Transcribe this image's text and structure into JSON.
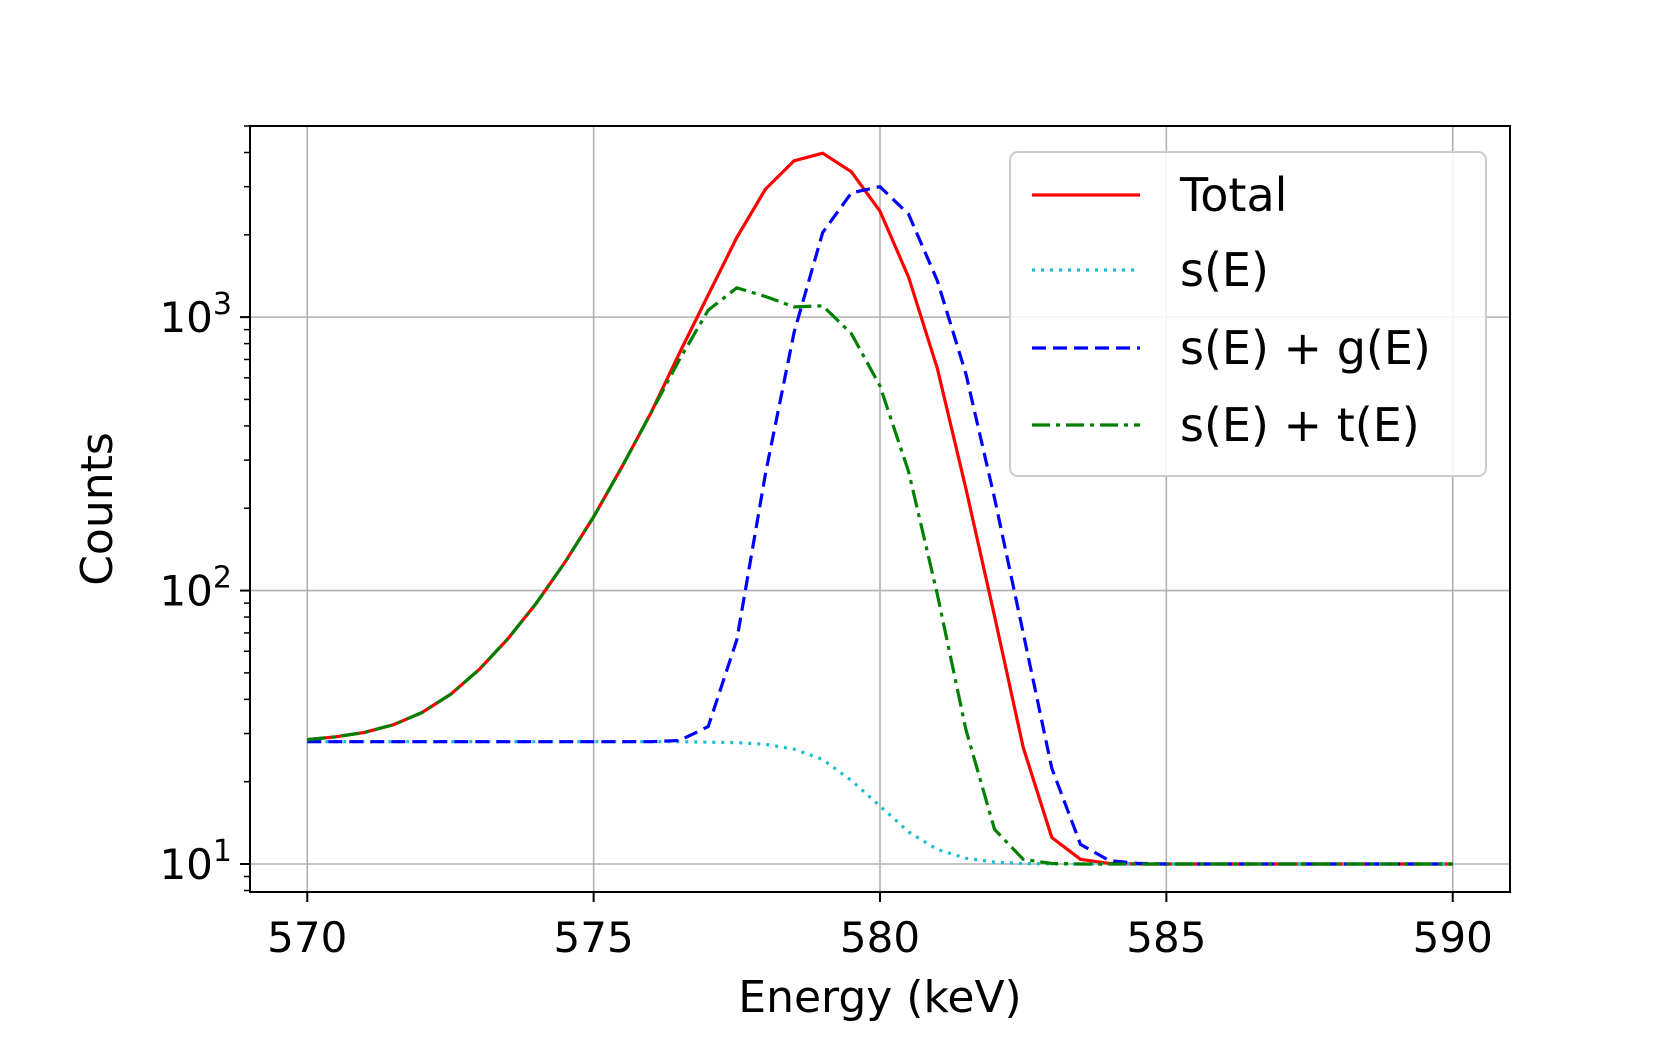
{
  "chart_data": {
    "type": "line",
    "title": "",
    "xlabel": "Energy (keV)",
    "ylabel": "Counts",
    "yscale": "log",
    "xlim": [
      569,
      591
    ],
    "ylim": [
      7.9,
      5000
    ],
    "grid": true,
    "legend_position": "top-right",
    "xticks": [
      {
        "value": 570,
        "label": "570"
      },
      {
        "value": 575,
        "label": "575"
      },
      {
        "value": 580,
        "label": "580"
      },
      {
        "value": 585,
        "label": "585"
      },
      {
        "value": 590,
        "label": "590"
      }
    ],
    "yticks": [
      {
        "value": 10,
        "base": "10",
        "exp": "1"
      },
      {
        "value": 100,
        "base": "10",
        "exp": "2"
      },
      {
        "value": 1000,
        "base": "10",
        "exp": "3"
      }
    ],
    "x": [
      570,
      570.5,
      571,
      571.5,
      572,
      572.5,
      573,
      573.5,
      574,
      574.5,
      575,
      575.5,
      576,
      576.5,
      577,
      577.5,
      578,
      578.5,
      579,
      579.5,
      580,
      580.5,
      581,
      581.5,
      582,
      582.5,
      583,
      583.5,
      584,
      584.5,
      585,
      585.5,
      586,
      586.5,
      587,
      587.5,
      588,
      588.5,
      589,
      589.5,
      590
    ],
    "series": [
      {
        "name": "Total",
        "color": "#ff0000",
        "dash": "solid",
        "values": [
          28.5,
          29.2,
          30.3,
          32.3,
          35.8,
          41.7,
          51.4,
          66.5,
          90,
          127,
          186,
          285,
          446,
          739,
          1205,
          1955,
          2940,
          3730,
          3975,
          3400,
          2440,
          1400,
          650,
          236,
          80.8,
          26.7,
          12.5,
          10.4,
          10.05,
          10,
          10,
          10,
          10,
          10,
          10,
          10,
          10,
          10,
          10,
          10,
          10
        ]
      },
      {
        "name": "s(E)",
        "color": "#17becf",
        "dash": "dotted",
        "values": [
          28,
          28,
          28,
          28,
          28,
          28,
          28,
          28,
          28,
          28,
          28,
          28,
          28,
          28,
          27.9,
          27.8,
          27.4,
          26.3,
          24.1,
          20.2,
          16.3,
          13.1,
          11.3,
          10.5,
          10.15,
          10.04,
          10.01,
          10,
          10,
          10,
          10,
          10,
          10,
          10,
          10,
          10,
          10,
          10,
          10,
          10,
          10
        ]
      },
      {
        "name": "s(E) + g(E)",
        "color": "#0000ff",
        "dash": "dashed",
        "values": [
          28,
          28,
          28,
          28,
          28,
          28,
          28,
          28,
          28,
          28,
          28,
          28,
          28,
          28.3,
          31.8,
          66,
          268,
          880,
          2040,
          2850,
          3000,
          2380,
          1360,
          620,
          218,
          70,
          22.4,
          11.8,
          10.3,
          10.05,
          10,
          10,
          10,
          10,
          10,
          10,
          10,
          10,
          10,
          10,
          10
        ]
      },
      {
        "name": "s(E) + t(E)",
        "color": "#008000",
        "dash": "dashdot",
        "values": [
          28.5,
          29.2,
          30.3,
          32.3,
          35.8,
          41.7,
          51.4,
          66.5,
          90,
          127,
          186,
          285,
          446,
          700,
          1060,
          1280,
          1190,
          1090,
          1100,
          870,
          560,
          272,
          97,
          31,
          13.4,
          10.4,
          10.04,
          10,
          10,
          10,
          10,
          10,
          10,
          10,
          10,
          10,
          10,
          10,
          10,
          10,
          10
        ]
      }
    ]
  }
}
